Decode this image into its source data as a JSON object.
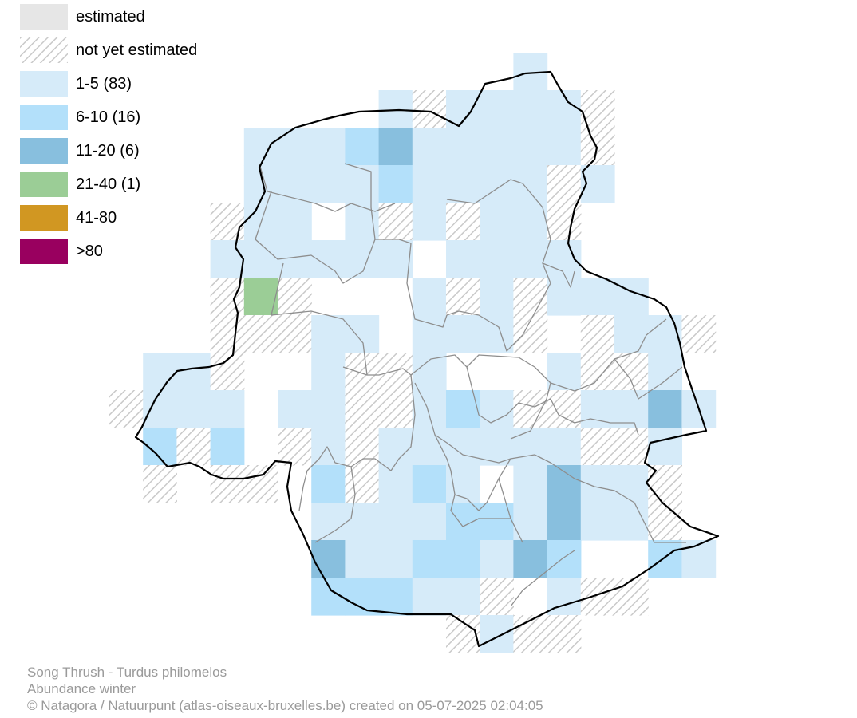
{
  "legend": {
    "estimated": "estimated",
    "not_estimated": "not yet estimated",
    "classes": [
      {
        "label": "1-5 (83)",
        "color": "#d6ebf9"
      },
      {
        "label": "6-10 (16)",
        "color": "#b3e0fa"
      },
      {
        "label": "11-20 (6)",
        "color": "#88bfde"
      },
      {
        "label": "21-40 (1)",
        "color": "#9bcd96"
      },
      {
        "label": "41-80",
        "color": "#d19722"
      },
      {
        "label": ">80",
        "color": "#99005f"
      }
    ]
  },
  "caption": {
    "species": "Song Thrush - Turdus philomelos",
    "subtitle": "Abundance winter",
    "credit": "© Natagora / Natuurpunt (atlas-oiseaux-bruxelles.be) created on 05-07-2025 02:04:05"
  }
}
